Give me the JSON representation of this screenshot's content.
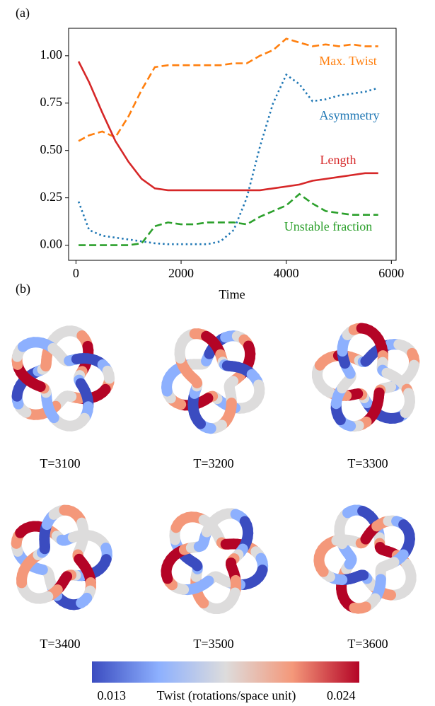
{
  "chart_data": {
    "type": "line",
    "panel_label": "(a)",
    "xlabel": "Time",
    "xlim": [
      -140,
      6090
    ],
    "ylim": [
      -0.08,
      1.145
    ],
    "xticks": [
      0,
      2000,
      4000,
      6000
    ],
    "yticks": [
      {
        "value": 0,
        "label": "0.00"
      },
      {
        "value": 0.25,
        "label": "0.25"
      },
      {
        "value": 0.5,
        "label": "0.50"
      },
      {
        "value": 0.75,
        "label": "0.75"
      },
      {
        "value": 1,
        "label": "1.00"
      }
    ],
    "x": [
      50,
      250,
      500,
      750,
      1000,
      1250,
      1500,
      1750,
      2000,
      2250,
      2500,
      2750,
      3000,
      3250,
      3500,
      3750,
      4000,
      4250,
      4500,
      4750,
      5000,
      5250,
      5500,
      5750
    ],
    "series": [
      {
        "name": "Max. Twist",
        "color": "#ff7f0e",
        "linestyle": "dashed",
        "values": [
          0.55,
          0.58,
          0.6,
          0.57,
          0.68,
          0.82,
          0.94,
          0.95,
          0.95,
          0.95,
          0.95,
          0.95,
          0.96,
          0.96,
          1.0,
          1.03,
          1.09,
          1.07,
          1.05,
          1.06,
          1.05,
          1.06,
          1.05,
          1.05
        ]
      },
      {
        "name": "Asymmetry",
        "color": "#1f77b4",
        "linestyle": "dotted",
        "values": [
          0.23,
          0.08,
          0.05,
          0.04,
          0.03,
          0.02,
          0.01,
          0.005,
          0.005,
          0.005,
          0.005,
          0.02,
          0.08,
          0.25,
          0.52,
          0.75,
          0.9,
          0.85,
          0.76,
          0.77,
          0.79,
          0.8,
          0.81,
          0.83
        ]
      },
      {
        "name": "Length",
        "color": "#d62728",
        "linestyle": "solid",
        "values": [
          0.97,
          0.86,
          0.7,
          0.55,
          0.44,
          0.35,
          0.3,
          0.29,
          0.29,
          0.29,
          0.29,
          0.29,
          0.29,
          0.29,
          0.29,
          0.3,
          0.31,
          0.32,
          0.34,
          0.35,
          0.36,
          0.37,
          0.38,
          0.38
        ]
      },
      {
        "name": "Unstable fraction",
        "color": "#2ca02c",
        "linestyle": "dashed",
        "values": [
          0,
          0,
          0,
          0,
          0,
          0.01,
          0.1,
          0.12,
          0.11,
          0.11,
          0.12,
          0.12,
          0.12,
          0.11,
          0.15,
          0.18,
          0.21,
          0.27,
          0.22,
          0.18,
          0.17,
          0.16,
          0.16,
          0.16
        ]
      }
    ]
  },
  "panel_b": {
    "label": "(b)",
    "snapshots": [
      {
        "caption": "T=3100"
      },
      {
        "caption": "T=3200"
      },
      {
        "caption": "T=3300"
      },
      {
        "caption": "T=3400"
      },
      {
        "caption": "T=3500"
      },
      {
        "caption": "T=3600"
      }
    ],
    "colorbar": {
      "label": "Twist (rotations/space unit)",
      "ticks": [
        "0.013",
        "0.024"
      ]
    }
  }
}
